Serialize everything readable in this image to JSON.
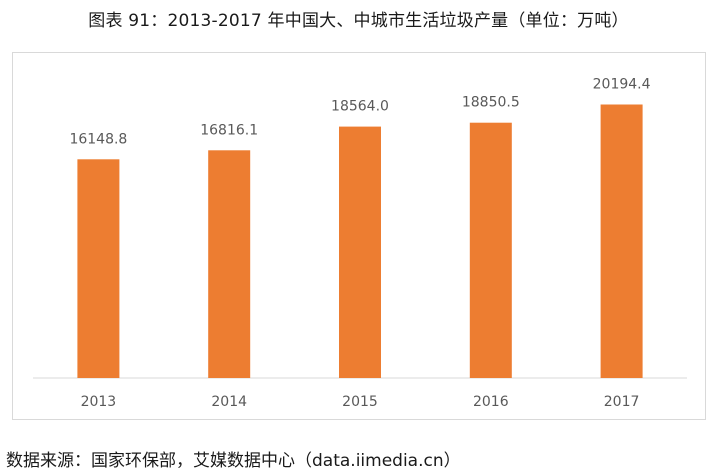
{
  "title": "图表 91：2013-2017 年中国大、中城市生活垃圾产量（单位：万吨）",
  "source": "数据来源：国家环保部，艾媒数据中心（data.iimedia.cn）",
  "colors": {
    "bar": "#ED7D31",
    "axis": "#d9d9d9",
    "label": "#595959"
  },
  "chart_data": {
    "type": "bar",
    "categories": [
      "2013",
      "2014",
      "2015",
      "2016",
      "2017"
    ],
    "values": [
      16148.8,
      16816.1,
      18564.0,
      18850.5,
      20194.4
    ],
    "value_labels": [
      "16148.8",
      "16816.1",
      "18564.0",
      "18850.5",
      "20194.4"
    ],
    "title": "图表 91：2013-2017 年中国大、中城市生活垃圾产量（单位：万吨）",
    "xlabel": "",
    "ylabel": "",
    "ylim": [
      0,
      24000
    ],
    "grid": false,
    "legend": "none"
  }
}
